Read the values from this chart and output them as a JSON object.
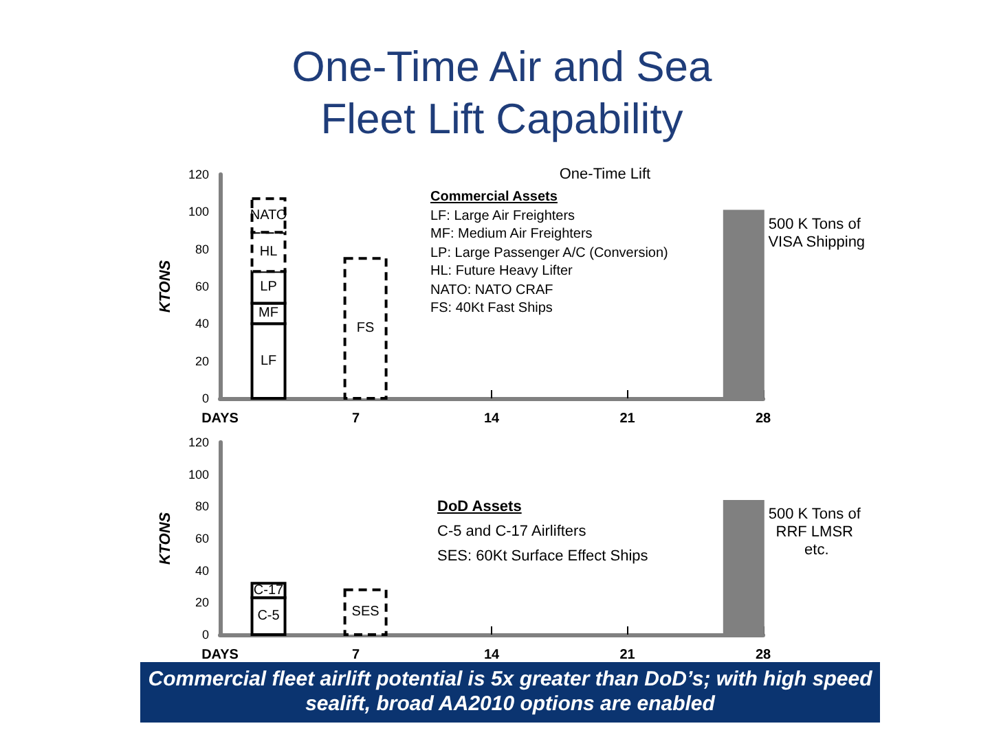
{
  "chart_data": [
    {
      "type": "bar",
      "title": "One-Time Air and Sea Fleet Lift Capability",
      "subtitle": "One-Time Lift",
      "ylabel": "KTONS",
      "legend": false,
      "grid": false,
      "xlim": [
        0,
        28
      ],
      "xticks": [
        {
          "value": 0,
          "label": "DAYS"
        },
        7,
        14,
        21,
        28
      ],
      "ylim": [
        0,
        120
      ],
      "yticks": [
        0,
        20,
        40,
        60,
        80,
        100,
        120
      ],
      "series": [
        {
          "name": "LF",
          "color": "#ffffff",
          "x": [
            2.5
          ],
          "values": [
            40
          ],
          "base": [
            0
          ]
        },
        {
          "name": "MF",
          "color": "#ffffff",
          "x": [
            2.5
          ],
          "values": [
            11
          ],
          "base": [
            40
          ]
        },
        {
          "name": "LP",
          "color": "#ffffff",
          "x": [
            2.5
          ],
          "values": [
            17
          ],
          "base": [
            51
          ]
        },
        {
          "name": "HL",
          "color": "#ffffff",
          "x": [
            2.5
          ],
          "values": [
            21
          ],
          "base": [
            68
          ],
          "line_style": "dashed"
        },
        {
          "name": "NATO",
          "color": "#ffffff",
          "x": [
            2.5
          ],
          "values": [
            18
          ],
          "base": [
            89
          ],
          "line_style": "dashed"
        },
        {
          "name": "FS",
          "color": "#ffffff",
          "x": [
            7.5
          ],
          "values": [
            75
          ],
          "line_style": "dashed"
        },
        {
          "name": "500 K Tons of VISA Shipping",
          "color": "#808080",
          "x": [
            27
          ],
          "values": [
            101
          ]
        }
      ],
      "annotations": [
        "Commercial Assets",
        "LF:  Large Air Freighters",
        "MF:  Medium Air Freighters",
        "LP:  Large Passenger A/C (Conversion)",
        "HL:  Future Heavy Lifter",
        "NATO:  NATO CRAF",
        "FS:  40Kt Fast Ships"
      ]
    },
    {
      "type": "bar",
      "ylabel": "KTONS",
      "legend": false,
      "grid": false,
      "xlim": [
        0,
        28
      ],
      "xticks": [
        {
          "value": 0,
          "label": "DAYS"
        },
        7,
        14,
        21,
        28
      ],
      "ylim": [
        0,
        120
      ],
      "yticks": [
        0,
        20,
        40,
        60,
        80,
        100,
        120
      ],
      "series": [
        {
          "name": "C-5",
          "color": "#ffffff",
          "x": [
            2.5
          ],
          "values": [
            23
          ],
          "base": [
            0
          ]
        },
        {
          "name": "C-17",
          "color": "#ffffff",
          "x": [
            2.5
          ],
          "values": [
            9
          ],
          "base": [
            23
          ]
        },
        {
          "name": "SES",
          "color": "#ffffff",
          "x": [
            7.5
          ],
          "values": [
            28
          ],
          "line_style": "dashed"
        },
        {
          "name": "500 K Tons of RRF LMSR etc.",
          "color": "#808080",
          "x": [
            27
          ],
          "values": [
            84
          ]
        }
      ],
      "annotations": [
        "DoD Assets",
        "C-5 and C-17 Airlifters",
        "SES:  60Kt Surface Effect Ships",
        "Commercial fleet airlift potential is 5x greater than DoD’s; with high speed sealift, broad AA2010 options are enabled"
      ]
    }
  ]
}
